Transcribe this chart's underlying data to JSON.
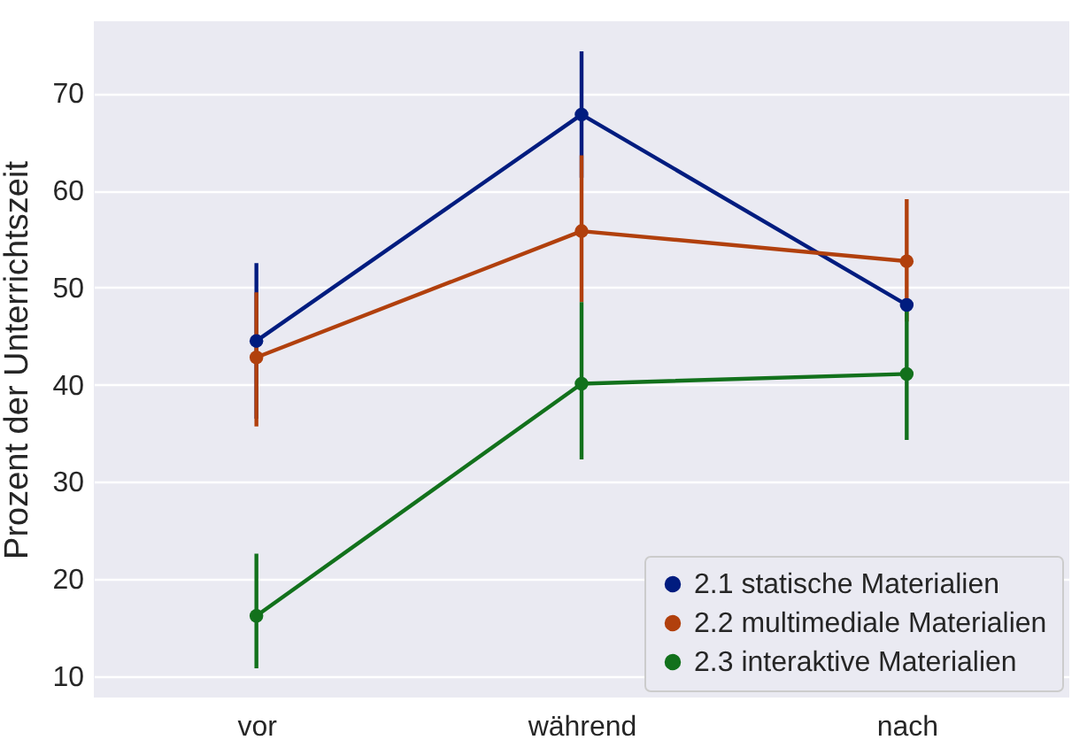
{
  "chart_data": {
    "type": "line",
    "ylabel": "Prozent der Unterrichtszeit",
    "categories": [
      "vor",
      "während",
      "nach"
    ],
    "series": [
      {
        "name": "2.1 statische Materialien",
        "color": "#001c7f",
        "values": [
          44.5,
          67.8,
          48.2
        ],
        "errors": [
          [
            36.5,
            52.5
          ],
          [
            61.3,
            74.3
          ],
          null
        ]
      },
      {
        "name": "2.2 multimediale Materialien",
        "color": "#b1400d",
        "values": [
          42.8,
          55.8,
          52.7
        ],
        "errors": [
          [
            35.7,
            49.5
          ],
          [
            48.5,
            63.6
          ],
          [
            46.5,
            59.1
          ]
        ]
      },
      {
        "name": "2.3 interaktive Materialien",
        "color": "#12711c",
        "values": [
          16.2,
          40.1,
          41.1
        ],
        "errors": [
          [
            10.8,
            22.6
          ],
          [
            32.3,
            48.5
          ],
          [
            34.3,
            48.5
          ]
        ]
      }
    ],
    "ylim": [
      7.8,
      77.4
    ],
    "yticks": [
      10,
      20,
      30,
      40,
      50,
      60,
      70
    ],
    "grid": "y",
    "legend": "bottom right",
    "marker": "circle"
  }
}
